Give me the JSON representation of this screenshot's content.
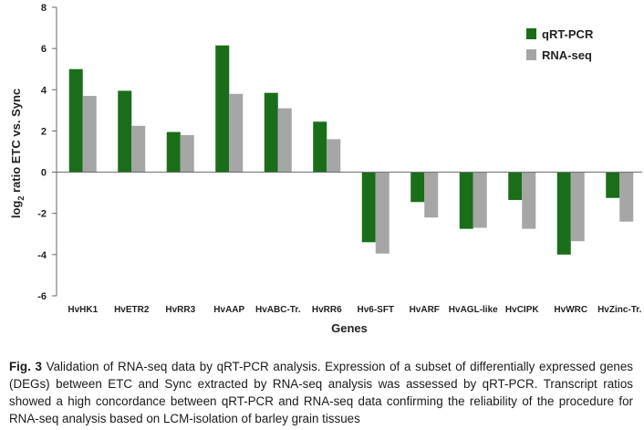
{
  "chart_data": {
    "type": "bar",
    "title": "",
    "xlabel": "Genes",
    "ylabel": "log2 ratio ETC vs. Sync",
    "ylim": [
      -6,
      8
    ],
    "yticks": [
      8,
      6,
      4,
      2,
      0,
      -2,
      -4,
      -6
    ],
    "grid": false,
    "legend_position": "top-right",
    "categories": [
      "HvHK1",
      "HvETR2",
      "HvRR3",
      "HvAAP",
      "HvABC-Tr.",
      "HvRR6",
      "Hv6-SFT",
      "HvARF",
      "HvAGL-like",
      "HvCIPK",
      "HvWRC",
      "HvZinc-Tr."
    ],
    "series": [
      {
        "name": "qRT-PCR",
        "color": "#1a6e1a",
        "values": [
          5.0,
          3.95,
          1.95,
          6.15,
          3.85,
          2.45,
          -3.4,
          -1.45,
          -2.75,
          -1.35,
          -4.0,
          -1.25
        ]
      },
      {
        "name": "RNA-seq",
        "color": "#a6a6a6",
        "values": [
          3.7,
          2.25,
          1.8,
          3.8,
          3.1,
          1.6,
          -3.95,
          -2.2,
          -2.7,
          -2.75,
          -3.35,
          -2.4
        ]
      }
    ]
  },
  "caption": {
    "label": "Fig. 3",
    "text": "Validation of RNA-seq data by qRT-PCR analysis. Expression of a subset of differentially expressed genes (DEGs) between ETC and Sync extracted by RNA-seq analysis was assessed by qRT-PCR. Transcript ratios showed a high concordance between qRT-PCR and RNA-seq data confirming the reliability of the procedure for RNA-seq analysis based on LCM-isolation of barley grain tissues"
  }
}
